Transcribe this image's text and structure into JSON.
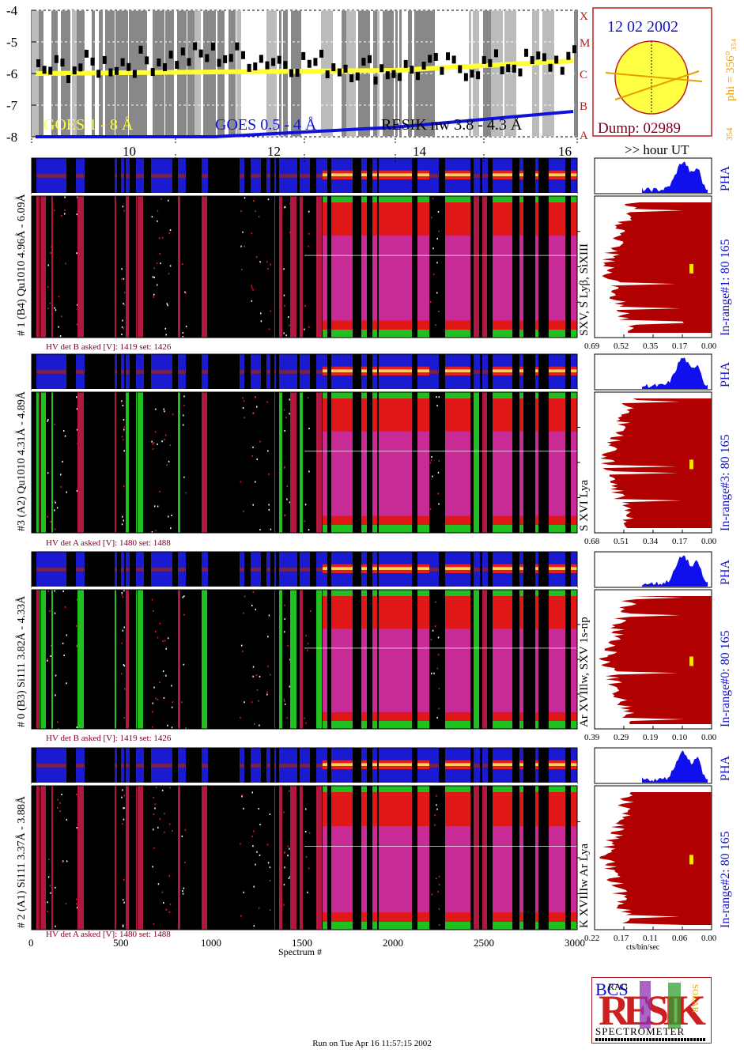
{
  "goes": {
    "yticks": [
      "-4",
      "-5",
      "-6",
      "-7",
      "-8"
    ],
    "class_labels": [
      "X",
      "M",
      "C",
      "B",
      "A"
    ],
    "legend_goes_long": "GOES 1 - 8 Å",
    "legend_goes_short": "GOES 0.5 - 4 Å",
    "legend_resik": "RESIK nw 3.8 - 4.3 Å",
    "colors": {
      "goes_long": "#ffff33",
      "goes_short": "#1010dd",
      "resik": "#000000",
      "class_labels": "#b02020"
    }
  },
  "sun": {
    "date": "12 02 2002",
    "dump": "Dump: 02989",
    "phi": "phi = 356°₃₅₄",
    "small": "354",
    "colors": {
      "disk": "#ffff44",
      "border": "#c02020",
      "date": "#1010cc",
      "dump": "#800020",
      "phi": "#e8a000"
    }
  },
  "time_axis": {
    "ticks": [
      "10",
      "12",
      "14",
      "16"
    ],
    "label": ">> hour UT"
  },
  "detectors": [
    {
      "id": "det1",
      "label": "# 1 (B4) Qu1010 4.96Å - 6.09Å",
      "lines": "SXV, S Lyβ, SiXIII",
      "hv": "HV det B asked [V]:  1419 set:  1426",
      "pha": "PHA",
      "range": "In-range#1:   80 165",
      "xticks": [
        "0.69",
        "0.52",
        "0.35",
        "0.17",
        "0.00"
      ]
    },
    {
      "id": "det3",
      "label": "#3 (A2) Qu1010  4.31Å - 4.89Å",
      "lines": "S XVI Lya",
      "hv": "HV det A asked [V]:  1480 set:  1488",
      "pha": "PHA",
      "range": "In-range#3:   80 165",
      "xticks": [
        "0.68",
        "0.51",
        "0.34",
        "0.17",
        "0.00"
      ]
    },
    {
      "id": "det0",
      "label": "# 0 (B3) Si111  3.82Å - 4.33Å",
      "lines": "Ar XVIIlw,  SXV 1s-np",
      "hv": "HV det B asked [V]:  1419 set:  1426",
      "pha": "PHA",
      "range": "In-range#0:   80 165",
      "xticks": [
        "0.39",
        "0.29",
        "0.19",
        "0.10",
        "0.00"
      ]
    },
    {
      "id": "det2",
      "label": "# 2 (A1) Si111  3.37Å - 3.88Å",
      "lines": "K XVIIIw  Ar Lya",
      "hv": "HV det A asked [V]:  1480 set:  1488",
      "pha": "PHA",
      "range": "In-range#2:   80 165",
      "xticks": [
        "0.22",
        "0.17",
        "0.11",
        "0.06",
        "0.00"
      ],
      "xlabel": "cts/bin/sec"
    }
  ],
  "spectrum_axis": {
    "ticks": [
      "0",
      "500",
      "1000",
      "1500",
      "2000",
      "2500",
      "3000"
    ],
    "label": "Spectrum #"
  },
  "logo": {
    "bcs": "BCS",
    "rag": "RAG",
    "resik": "RESIK",
    "solar": "SOLAR",
    "spectrometer": "SPECTROMETER"
  },
  "footer": "Run on Tue Apr 16 11:57:15 2002",
  "chart_data": [
    {
      "type": "line",
      "title": "",
      "ylabel": "",
      "ylim": [
        -8,
        -4
      ],
      "x": [
        "10",
        "12",
        "14",
        "16"
      ],
      "series": [
        {
          "name": "GOES 1 - 8 Å",
          "values": [
            -6.0,
            -5.95,
            -5.9,
            -5.6
          ]
        },
        {
          "name": "GOES 0.5 - 4 Å",
          "values": [
            -8.0,
            -8.0,
            -7.7,
            -7.2
          ]
        },
        {
          "name": "RESIK nw 3.8 - 4.3 Å",
          "values": [
            -5.9,
            -5.4,
            -5.9,
            -5.6
          ]
        }
      ]
    },
    {
      "type": "heatmap",
      "xlabel": "Spectrum #",
      "xlim": [
        0,
        3000
      ],
      "x_ticks": [
        0,
        500,
        1000,
        1500,
        2000,
        2500,
        3000
      ],
      "rows": [
        "#1 (B4)",
        "#3 (A2)",
        "#0 (B3)",
        "#2 (A1)"
      ]
    }
  ]
}
